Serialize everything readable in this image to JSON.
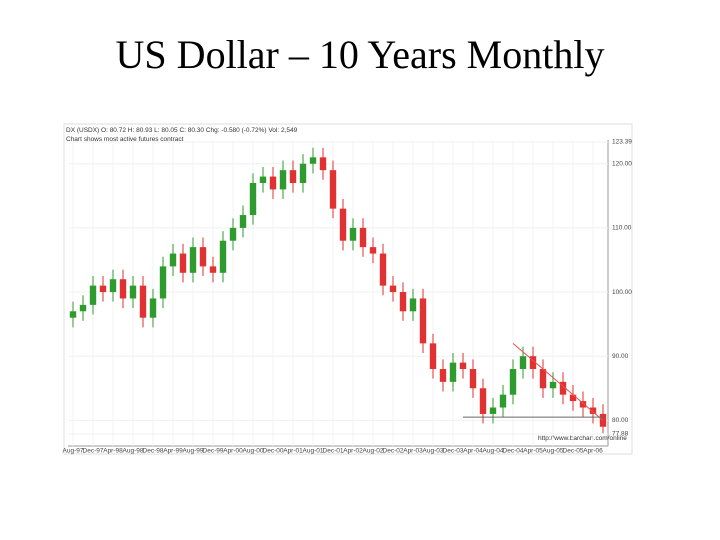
{
  "chart_data": {
    "type": "candlestick",
    "title": "US Dollar – 10 Years Monthly",
    "header": "DX (USDX) O: 80.72 H: 80.93 L: 80.05 C: 80.30 Chg: -0.580 (-0.72%) Vol: 2,549",
    "subtitle": "Chart shows most active futures contract",
    "source": "http://www.barchart.com/online",
    "categories": [
      "Aug-97",
      null,
      "Dec-97",
      null,
      "Apr-98",
      null,
      "Aug-98",
      null,
      "Dec-98",
      null,
      "Apr-99",
      null,
      "Aug-99",
      null,
      "Dec-99",
      null,
      "Apr-00",
      null,
      "Aug-00",
      null,
      "Dec-00",
      null,
      "Apr-01",
      null,
      "Aug-01",
      null,
      "Dec-01",
      null,
      "Apr-02",
      null,
      "Aug-02",
      null,
      "Dec-02",
      null,
      "Apr-03",
      null,
      "Aug-03",
      null,
      "Dec-03",
      null,
      "Apr-04",
      null,
      "Aug-04",
      null,
      "Dec-04",
      null,
      "Apr-05",
      null,
      "Aug-05",
      null,
      "Dec-05",
      null,
      "Apr-06",
      null
    ],
    "open": [
      96,
      97,
      98,
      101,
      100,
      102,
      99,
      101,
      96,
      99,
      104,
      106,
      103,
      107,
      104,
      103,
      108,
      110,
      112,
      117,
      118,
      116,
      119,
      117,
      120,
      121,
      119,
      113,
      108,
      110,
      107,
      106,
      101,
      100,
      97,
      99,
      92,
      88,
      86,
      89,
      88,
      85,
      81,
      82,
      84,
      88,
      90,
      88,
      85,
      86,
      84,
      83,
      82,
      81
    ],
    "high": [
      98.5,
      99.5,
      102.5,
      102.5,
      103.5,
      103.5,
      102.5,
      102.5,
      100.5,
      105.5,
      107.5,
      107.5,
      108.5,
      108.5,
      105.5,
      109.5,
      111.5,
      113.5,
      118.5,
      119.5,
      119.5,
      120.5,
      120.5,
      121.5,
      122.5,
      122.5,
      120.5,
      114.5,
      111.5,
      111.5,
      108.5,
      107.5,
      102.5,
      101.5,
      100.5,
      100.5,
      93.5,
      89.5,
      90.5,
      90.5,
      89.5,
      86.5,
      83.5,
      85.5,
      89.5,
      91.5,
      91.5,
      89.5,
      87.5,
      87.5,
      85.5,
      84.5,
      83.5,
      82.5
    ],
    "low": [
      94.5,
      95.5,
      96.5,
      98.5,
      98.5,
      97.5,
      97.5,
      94.5,
      94.5,
      97.5,
      102.5,
      101.5,
      101.5,
      102.5,
      101.5,
      101.5,
      106.5,
      108.5,
      110.5,
      115.5,
      114.5,
      114.5,
      115.5,
      115.5,
      118.5,
      117.5,
      111.5,
      106.5,
      106.5,
      105.5,
      104.5,
      99.5,
      98.5,
      95.5,
      95.5,
      90.5,
      86.5,
      84.5,
      84.5,
      86.5,
      83.5,
      79.5,
      79.5,
      80.5,
      82.5,
      86.5,
      86.5,
      83.5,
      83.5,
      82.5,
      81.5,
      80.5,
      79.5,
      78
    ],
    "close": [
      97,
      98,
      101,
      100,
      102,
      99,
      101,
      96,
      99,
      104,
      106,
      103,
      107,
      104,
      103,
      108,
      110,
      112,
      117,
      118,
      116,
      119,
      117,
      120,
      121,
      119,
      113,
      108,
      110,
      107,
      106,
      101,
      100,
      97,
      99,
      92,
      88,
      86,
      89,
      88,
      85,
      81,
      82,
      84,
      88,
      90,
      88,
      85,
      86,
      84,
      83,
      82,
      81,
      79
    ],
    "up_color": "#2e9b2e",
    "down_color": "#e03232",
    "trendlines": [
      {
        "x": [
          44,
          53
        ],
        "y": [
          92,
          80
        ],
        "color": "#e85050"
      },
      {
        "x": [
          39,
          53
        ],
        "y": [
          80.5,
          80.5
        ],
        "color": "#666666"
      }
    ],
    "ylim": [
      76,
      123.39
    ],
    "yticks": [
      {
        "value": 77.88,
        "label": "77.88"
      },
      {
        "value": 80,
        "label": "80.00"
      },
      {
        "value": 90,
        "label": "90.00"
      },
      {
        "value": 100,
        "label": "100.00"
      },
      {
        "value": 110,
        "label": "110.00"
      },
      {
        "value": 120,
        "label": "120.00"
      },
      {
        "value": 123.39,
        "label": "123.39"
      }
    ],
    "grid": true
  }
}
